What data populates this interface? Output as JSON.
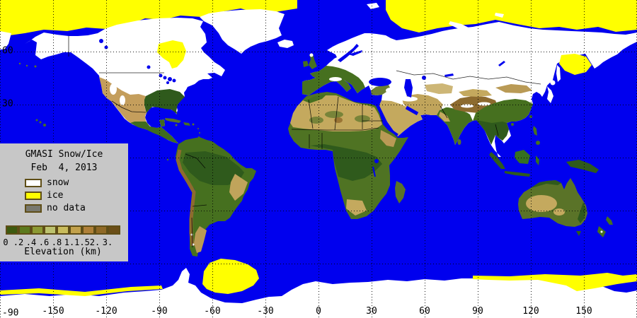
{
  "map": {
    "description": "GMASI global snow and ice analysis map, equirectangular world projection with elevation shading",
    "legend": {
      "title": "GMASI Snow/Ice",
      "date": "Feb  4, 2013",
      "items": [
        {
          "label": "snow",
          "color": "#FFFFFF"
        },
        {
          "label": "ice",
          "color": "#FFFF00"
        },
        {
          "label": "no data",
          "color": "#78786E"
        }
      ],
      "colorbar": {
        "label": "Elevation (km)",
        "tick_labels": [
          "0",
          ".2",
          ".4",
          ".6",
          ".8",
          "1.",
          "1.5",
          "2.",
          "3."
        ],
        "colors": [
          "#3D5A0F",
          "#5C7A1E",
          "#8C9A33",
          "#BCC26E",
          "#C9BC5C",
          "#C2A14B",
          "#AF8038",
          "#8F6926",
          "#6B4E17"
        ],
        "border_color": "#5F4E17"
      },
      "background": "#C7C7C7"
    },
    "axes": {
      "lon_ticks": [
        {
          "label": "-150",
          "lon": -150
        },
        {
          "label": "-120",
          "lon": -120
        },
        {
          "label": "-90",
          "lon": -90
        },
        {
          "label": "-60",
          "lon": -60
        },
        {
          "label": "-30",
          "lon": -30
        },
        {
          "label": "0",
          "lon": 0
        },
        {
          "label": "30",
          "lon": 30
        },
        {
          "label": "60",
          "lon": 60
        },
        {
          "label": "90",
          "lon": 90
        },
        {
          "label": "120",
          "lon": 120
        },
        {
          "label": "150",
          "lon": 150
        }
      ],
      "lat_ticks": [
        {
          "label": "60",
          "lat": 60
        },
        {
          "label": "30",
          "lat": 30
        },
        {
          "label": "-90",
          "lat": -90
        }
      ],
      "grid_interval_deg": 30,
      "grid_style": "dotted black"
    },
    "colors": {
      "ocean": "#0000EE",
      "snow": "#FFFFFF",
      "ice": "#FFFF00",
      "no_data": "#78786E",
      "land_low": "#2F5A1C",
      "land_mid": "#46701F",
      "land_high": "#8D6B2F",
      "desert": "#C4A95E"
    }
  }
}
